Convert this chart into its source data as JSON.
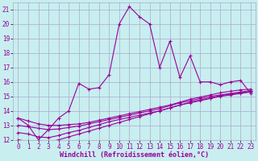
{
  "xlabel": "Windchill (Refroidissement éolien,°C)",
  "background_color": "#c8eef0",
  "line_color": "#990099",
  "grid_color": "#aaaacc",
  "x": [
    0,
    1,
    2,
    3,
    4,
    5,
    6,
    7,
    8,
    9,
    10,
    11,
    12,
    13,
    14,
    15,
    16,
    17,
    18,
    19,
    20,
    21,
    22,
    23
  ],
  "y_main": [
    13.5,
    13.0,
    12.0,
    12.7,
    13.5,
    14.0,
    15.9,
    15.5,
    15.6,
    16.5,
    20.0,
    21.2,
    20.5,
    20.0,
    17.0,
    18.8,
    16.3,
    17.8,
    16.0,
    16.0,
    15.8,
    16.0,
    16.1,
    15.2
  ],
  "y_line1": [
    13.5,
    13.3,
    13.1,
    13.0,
    13.0,
    13.05,
    13.1,
    13.2,
    13.35,
    13.5,
    13.65,
    13.8,
    13.95,
    14.1,
    14.25,
    14.4,
    14.6,
    14.8,
    14.95,
    15.1,
    15.25,
    15.35,
    15.45,
    15.5
  ],
  "y_line2": [
    13.0,
    12.9,
    12.8,
    12.7,
    12.75,
    12.85,
    12.95,
    13.1,
    13.25,
    13.4,
    13.55,
    13.7,
    13.85,
    14.0,
    14.15,
    14.35,
    14.55,
    14.7,
    14.85,
    15.0,
    15.1,
    15.2,
    15.3,
    15.4
  ],
  "y_line3": [
    12.5,
    12.4,
    12.2,
    12.15,
    12.3,
    12.5,
    12.65,
    12.85,
    13.05,
    13.25,
    13.4,
    13.55,
    13.7,
    13.85,
    14.0,
    14.2,
    14.4,
    14.6,
    14.75,
    14.9,
    15.05,
    15.15,
    15.25,
    15.35
  ],
  "y_line4": [
    12.0,
    11.9,
    11.8,
    11.85,
    12.0,
    12.2,
    12.4,
    12.6,
    12.8,
    13.0,
    13.2,
    13.4,
    13.6,
    13.8,
    14.0,
    14.2,
    14.4,
    14.55,
    14.7,
    14.85,
    15.0,
    15.1,
    15.2,
    15.3
  ],
  "ylim": [
    12,
    21.5
  ],
  "xlim": [
    -0.5,
    23.5
  ],
  "yticks": [
    12,
    13,
    14,
    15,
    16,
    17,
    18,
    19,
    20,
    21
  ],
  "xticks": [
    0,
    1,
    2,
    3,
    4,
    5,
    6,
    7,
    8,
    9,
    10,
    11,
    12,
    13,
    14,
    15,
    16,
    17,
    18,
    19,
    20,
    21,
    22,
    23
  ],
  "tick_fontsize": 5.5,
  "xlabel_fontsize": 6.0
}
